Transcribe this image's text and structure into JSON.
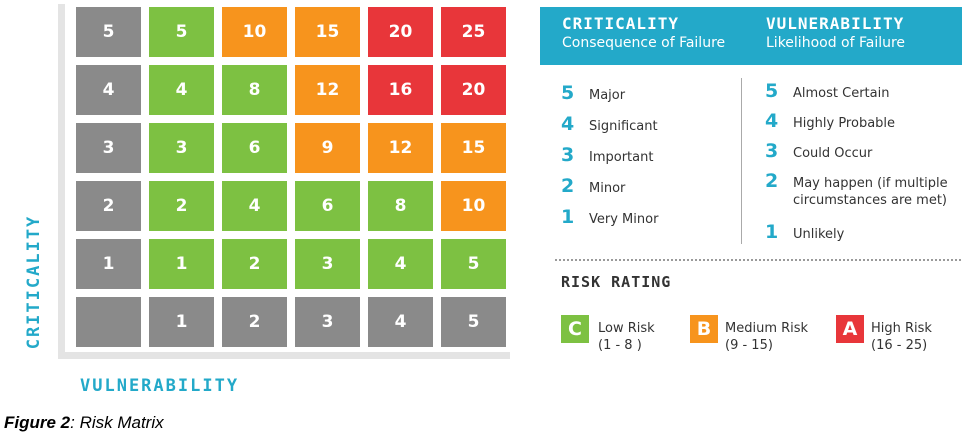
{
  "matrix": {
    "rows": [
      [
        {
          "v": "5",
          "c": "gray"
        },
        {
          "v": "5",
          "c": "green"
        },
        {
          "v": "10",
          "c": "orange"
        },
        {
          "v": "15",
          "c": "orange"
        },
        {
          "v": "20",
          "c": "red"
        },
        {
          "v": "25",
          "c": "red"
        }
      ],
      [
        {
          "v": "4",
          "c": "gray"
        },
        {
          "v": "4",
          "c": "green"
        },
        {
          "v": "8",
          "c": "green"
        },
        {
          "v": "12",
          "c": "orange"
        },
        {
          "v": "16",
          "c": "red"
        },
        {
          "v": "20",
          "c": "red"
        }
      ],
      [
        {
          "v": "3",
          "c": "gray"
        },
        {
          "v": "3",
          "c": "green"
        },
        {
          "v": "6",
          "c": "green"
        },
        {
          "v": "9",
          "c": "orange"
        },
        {
          "v": "12",
          "c": "orange"
        },
        {
          "v": "15",
          "c": "orange"
        }
      ],
      [
        {
          "v": "2",
          "c": "gray"
        },
        {
          "v": "2",
          "c": "green"
        },
        {
          "v": "4",
          "c": "green"
        },
        {
          "v": "6",
          "c": "green"
        },
        {
          "v": "8",
          "c": "green"
        },
        {
          "v": "10",
          "c": "orange"
        }
      ],
      [
        {
          "v": "1",
          "c": "gray"
        },
        {
          "v": "1",
          "c": "green"
        },
        {
          "v": "2",
          "c": "green"
        },
        {
          "v": "3",
          "c": "green"
        },
        {
          "v": "4",
          "c": "green"
        },
        {
          "v": "5",
          "c": "green"
        }
      ],
      [
        {
          "v": "",
          "c": "gray"
        },
        {
          "v": "1",
          "c": "gray"
        },
        {
          "v": "2",
          "c": "gray"
        },
        {
          "v": "3",
          "c": "gray"
        },
        {
          "v": "4",
          "c": "gray"
        },
        {
          "v": "5",
          "c": "gray"
        }
      ]
    ],
    "colors": {
      "gray": "#8a8a8a",
      "green": "#7dc142",
      "orange": "#f7941d",
      "red": "#e8363a"
    },
    "y_axis_label": "CRITICALITY",
    "x_axis_label": "VULNERABILITY"
  },
  "caption": {
    "bold": "Figure 2",
    "rest": ": Risk Matrix"
  },
  "legend": {
    "accent": "#23a9c9",
    "criticality": {
      "title": "CRITICALITY",
      "subtitle": "Consequence of Failure",
      "levels": [
        {
          "num": "5",
          "label": "Major"
        },
        {
          "num": "4",
          "label": "Significant"
        },
        {
          "num": "3",
          "label": "Important"
        },
        {
          "num": "2",
          "label": "Minor"
        },
        {
          "num": "1",
          "label": "Very Minor"
        }
      ]
    },
    "vulnerability": {
      "title": "VULNERABILITY",
      "subtitle": "Likelihood of Failure",
      "levels": [
        {
          "num": "5",
          "label": "Almost Certain",
          "label2": ""
        },
        {
          "num": "4",
          "label": "Highly Probable",
          "label2": ""
        },
        {
          "num": "3",
          "label": "Could Occur",
          "label2": ""
        },
        {
          "num": "2",
          "label": "May happen (if multiple",
          "label2": "circumstances are met)"
        },
        {
          "num": "1",
          "label": "Unlikely",
          "label2": ""
        }
      ]
    },
    "risk_rating": {
      "title": "RISK RATING",
      "items": [
        {
          "letter": "C",
          "label": "Low Risk",
          "range": "(1 - 8 )",
          "color": "#7dc142"
        },
        {
          "letter": "B",
          "label": "Medium Risk",
          "range": "(9 - 15)",
          "color": "#f7941d"
        },
        {
          "letter": "A",
          "label": "High Risk",
          "range": "(16 - 25)",
          "color": "#e8363a"
        }
      ]
    }
  }
}
